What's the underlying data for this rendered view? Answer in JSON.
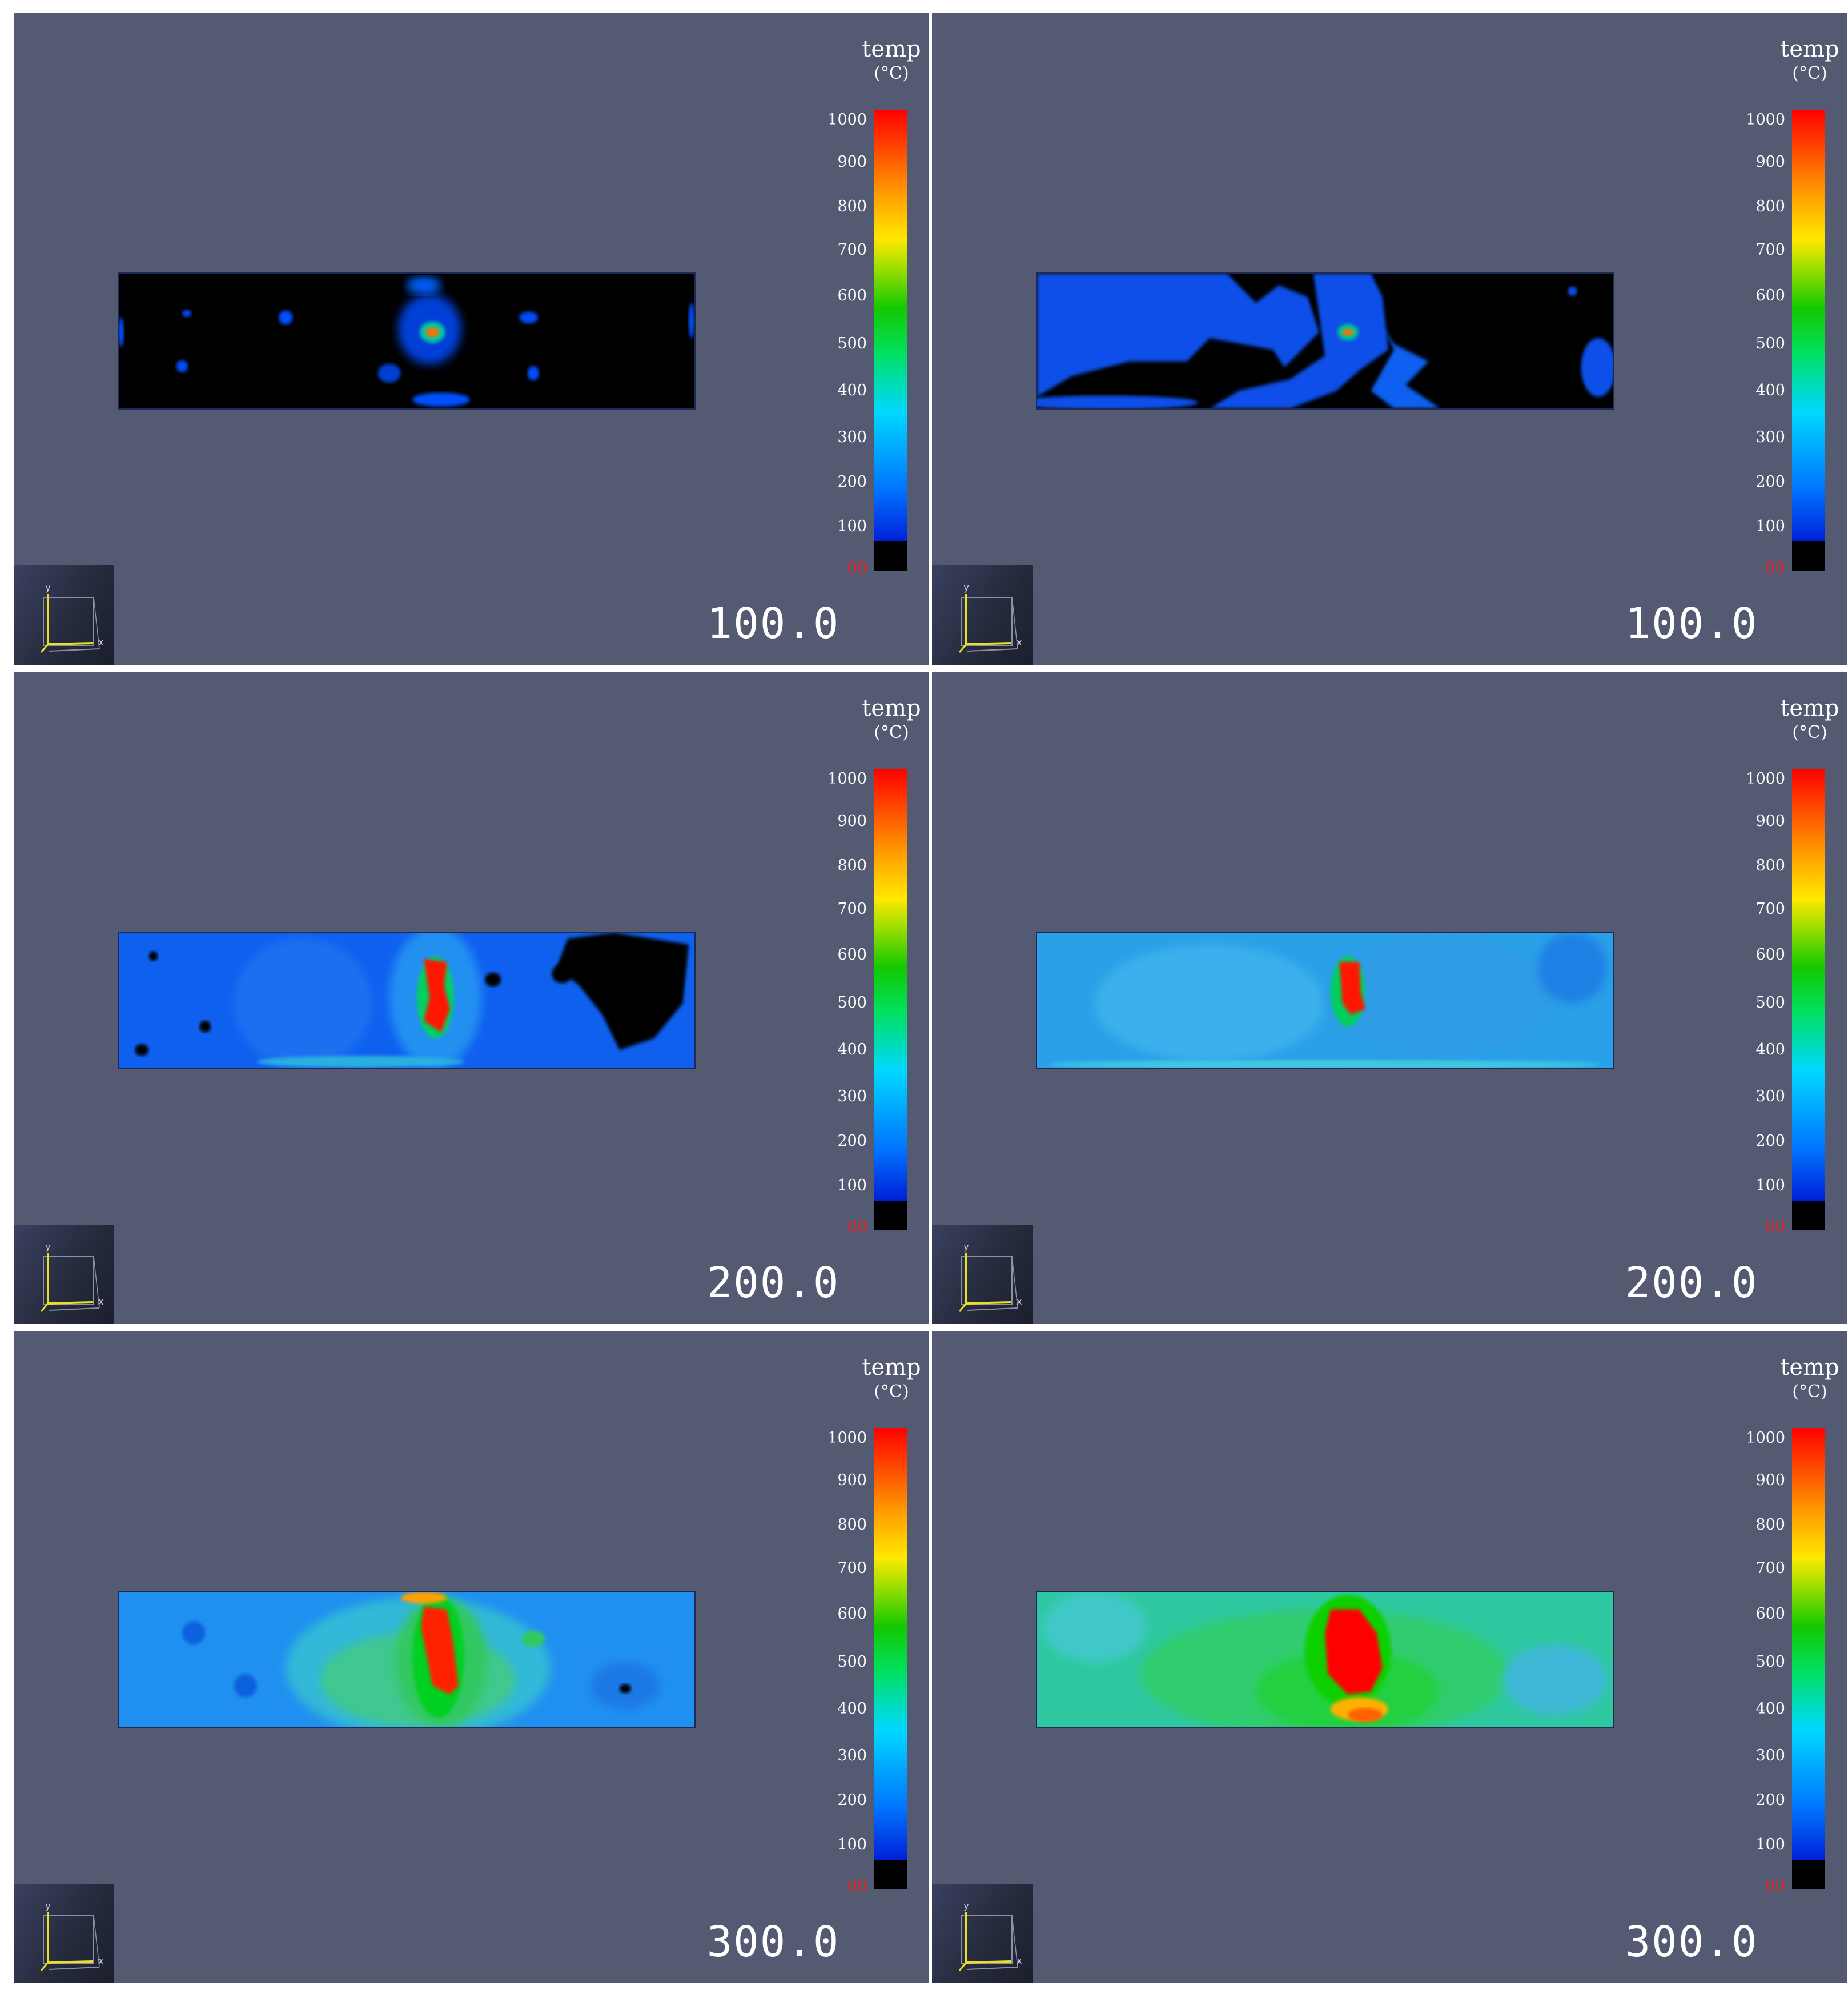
{
  "panels": [
    {
      "time": "100.0",
      "field": "black-mostly"
    },
    {
      "time": "100.0",
      "field": "blue-partial"
    },
    {
      "time": "200.0",
      "field": "blue-full"
    },
    {
      "time": "200.0",
      "field": "lightblue-full"
    },
    {
      "time": "300.0",
      "field": "cyan-green"
    },
    {
      "time": "300.0",
      "field": "green-hot"
    }
  ],
  "legend": {
    "title": "temp",
    "unit": "(°C)",
    "ticks": [
      "1000",
      "900",
      "800",
      "700",
      "600",
      "500",
      "400",
      "300",
      "200",
      "100"
    ],
    "min_label": "00",
    "range": [
      0,
      1000
    ]
  },
  "axes": {
    "x": "x",
    "y": "y"
  },
  "colors": {
    "background": "#545a72",
    "cold": "#000000",
    "low": "#0050ff",
    "mid": "#00e060",
    "hot": "#ff0000"
  }
}
